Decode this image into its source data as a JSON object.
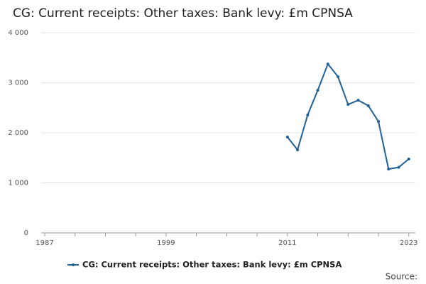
{
  "chart_data": {
    "type": "line",
    "title": "CG: Current receipts: Other taxes: Bank levy: £m CPNSA",
    "x": [
      2011,
      2012,
      2013,
      2014,
      2015,
      2016,
      2017,
      2018,
      2019,
      2020,
      2021,
      2022,
      2023
    ],
    "series": [
      {
        "name": "CG: Current receipts: Other taxes: Bank levy: £m CPNSA",
        "color": "#206095",
        "values": [
          1915,
          1660,
          2355,
          2850,
          3375,
          3120,
          2565,
          2650,
          2540,
          2225,
          1275,
          1310,
          1475
        ]
      }
    ],
    "xlim": [
      1986.65,
      2023.65
    ],
    "xticks": [
      1987,
      1999,
      2011,
      2023
    ],
    "ylim": [
      0,
      4000
    ],
    "yticks": [
      0,
      {
        "value": 1000,
        "label": "1 000"
      },
      {
        "value": 2000,
        "label": "2 000"
      },
      {
        "value": 3000,
        "label": "3 000"
      },
      {
        "value": 4000,
        "label": "4 000"
      }
    ],
    "grid": true,
    "source": "Source:"
  }
}
